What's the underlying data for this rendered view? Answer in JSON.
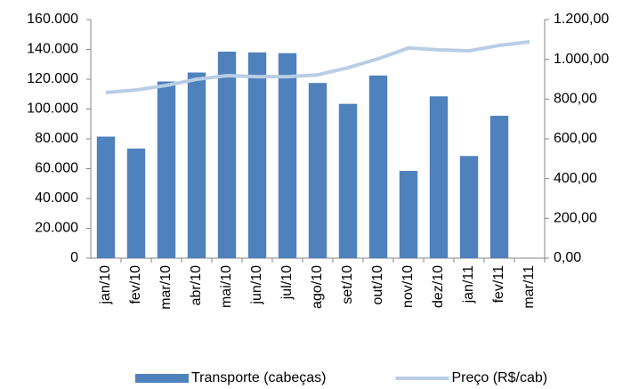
{
  "chart_data": {
    "type": "bar_line",
    "categories": [
      "jan/10",
      "fev/10",
      "mar/10",
      "abr/10",
      "mai/10",
      "jun/10",
      "jul/10",
      "ago/10",
      "set/10",
      "out/10",
      "nov/10",
      "dez/10",
      "jan/11",
      "fev/11",
      "mar/11"
    ],
    "series": [
      {
        "name": "Transporte (cabeças)",
        "type": "bar",
        "color": "#4f81bd",
        "values": [
          81500,
          73500,
          118500,
          124500,
          138500,
          138000,
          137500,
          117500,
          103500,
          122500,
          58500,
          108500,
          68500,
          95500,
          null
        ]
      },
      {
        "name": "Preço (R$/cab)",
        "type": "line",
        "axis": "y2",
        "color": "#b9cde5",
        "values": [
          833,
          846,
          869,
          900,
          918,
          913,
          913,
          922,
          958,
          1003,
          1057,
          1048,
          1043,
          1070,
          1088
        ]
      }
    ],
    "ylim": [
      0,
      160000
    ],
    "yticks": [
      0,
      {
        "value": 20000,
        "label": "20.000"
      },
      {
        "value": 40000,
        "label": "40.000"
      },
      {
        "value": 60000,
        "label": "60.000"
      },
      {
        "value": 80000,
        "label": "80.000"
      },
      {
        "value": 100000,
        "label": "100.000"
      },
      {
        "value": 120000,
        "label": "120.000"
      },
      {
        "value": 140000,
        "label": "140.000"
      },
      {
        "value": 160000,
        "label": "160.000"
      }
    ],
    "y2lim": [
      0,
      1200
    ],
    "y2ticks": [
      {
        "value": 0,
        "label": "0,00"
      },
      {
        "value": 200,
        "label": "200,00"
      },
      {
        "value": 400,
        "label": "400,00"
      },
      {
        "value": 600,
        "label": "600,00"
      },
      {
        "value": 800,
        "label": "800,00"
      },
      {
        "value": 1000,
        "label": "1.000,00"
      },
      {
        "value": 1200,
        "label": "1.200,00"
      }
    ],
    "grid": false,
    "legend": "bottom"
  }
}
